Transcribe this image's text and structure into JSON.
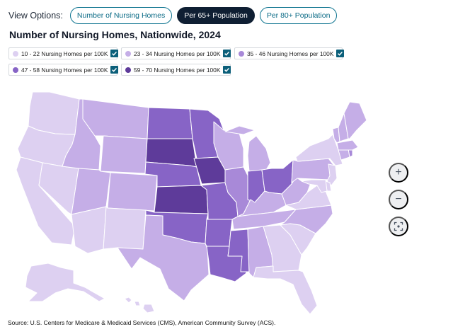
{
  "view_options": {
    "label": "View Options:",
    "buttons": [
      {
        "label": "Number of Nursing Homes",
        "active": false
      },
      {
        "label": "Per 65+ Population",
        "active": true
      },
      {
        "label": "Per 80+ Population",
        "active": false
      }
    ]
  },
  "title": "Number of Nursing Homes, Nationwide, 2024",
  "legend": [
    {
      "label": "10 - 22 Nursing Homes per 100K",
      "color": "#ddd0f1",
      "checked": true
    },
    {
      "label": "23 - 34 Nursing Homes per 100K",
      "color": "#c5aee7",
      "checked": true
    },
    {
      "label": "35 - 46 Nursing Homes per 100K",
      "color": "#a889d8",
      "checked": true
    },
    {
      "label": "47 - 58 Nursing Homes per 100K",
      "color": "#8764c6",
      "checked": true
    },
    {
      "label": "59 - 70 Nursing Homes per 100K",
      "color": "#5e3b9a",
      "checked": true
    }
  ],
  "map": {
    "states": [
      {
        "id": "WA",
        "tier": 0
      },
      {
        "id": "OR",
        "tier": 0
      },
      {
        "id": "CA",
        "tier": 0
      },
      {
        "id": "NV",
        "tier": 0
      },
      {
        "id": "ID",
        "tier": 1
      },
      {
        "id": "MT",
        "tier": 1
      },
      {
        "id": "WY",
        "tier": 1
      },
      {
        "id": "UT",
        "tier": 1
      },
      {
        "id": "AZ",
        "tier": 0
      },
      {
        "id": "CO",
        "tier": 1
      },
      {
        "id": "NM",
        "tier": 0
      },
      {
        "id": "ND",
        "tier": 3
      },
      {
        "id": "SD",
        "tier": 4
      },
      {
        "id": "NE",
        "tier": 3
      },
      {
        "id": "KS",
        "tier": 4
      },
      {
        "id": "OK",
        "tier": 3
      },
      {
        "id": "TX",
        "tier": 1
      },
      {
        "id": "MN",
        "tier": 3
      },
      {
        "id": "IA",
        "tier": 4
      },
      {
        "id": "MO",
        "tier": 3
      },
      {
        "id": "AR",
        "tier": 3
      },
      {
        "id": "LA",
        "tier": 3
      },
      {
        "id": "WI",
        "tier": 1
      },
      {
        "id": "IL",
        "tier": 2
      },
      {
        "id": "MI",
        "tier": 1
      },
      {
        "id": "IN",
        "tier": 3
      },
      {
        "id": "OH",
        "tier": 3
      },
      {
        "id": "KY",
        "tier": 1
      },
      {
        "id": "TN",
        "tier": 1
      },
      {
        "id": "MS",
        "tier": 3
      },
      {
        "id": "AL",
        "tier": 1
      },
      {
        "id": "GA",
        "tier": 0
      },
      {
        "id": "FL",
        "tier": 0
      },
      {
        "id": "SC",
        "tier": 0
      },
      {
        "id": "NC",
        "tier": 1
      },
      {
        "id": "VA",
        "tier": 0
      },
      {
        "id": "WV",
        "tier": 1
      },
      {
        "id": "PA",
        "tier": 1
      },
      {
        "id": "NY",
        "tier": 0
      },
      {
        "id": "VT",
        "tier": 1
      },
      {
        "id": "NH",
        "tier": 1
      },
      {
        "id": "ME",
        "tier": 1
      },
      {
        "id": "MA",
        "tier": 1
      },
      {
        "id": "CT",
        "tier": 1
      },
      {
        "id": "RI",
        "tier": 2
      },
      {
        "id": "NJ",
        "tier": 0
      },
      {
        "id": "DE",
        "tier": 0
      },
      {
        "id": "MD",
        "tier": 0
      },
      {
        "id": "AK",
        "tier": 0
      },
      {
        "id": "HI",
        "tier": 0
      }
    ]
  },
  "zoom_controls": {
    "zoom_in": "+",
    "zoom_out": "−"
  },
  "source": "Source: U.S. Centers for Medicare & Medicaid Services (CMS), American Community Survey (ACS)."
}
